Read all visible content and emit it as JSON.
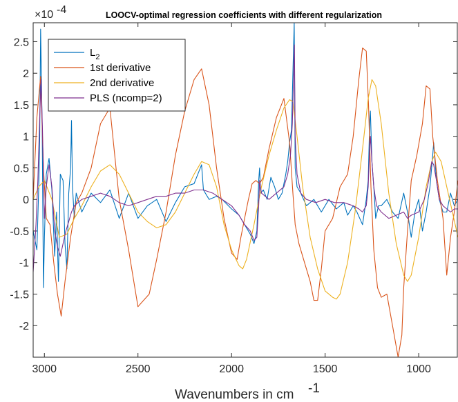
{
  "chart_data": {
    "type": "line",
    "title": "LOOCV-optimal regression coefficients with different regularization",
    "xlabel": "Wavenumbers in cm",
    "xlabel_superscript": "-1",
    "ylabel": "",
    "y_exponent_label": "×10",
    "y_exponent_power": "-4",
    "xlim": [
      3060,
      790
    ],
    "x_reversed": true,
    "ylim": [
      -2.5,
      2.8
    ],
    "x_ticks": [
      {
        "value": 3000,
        "label": "3000"
      },
      {
        "value": 2500,
        "label": "2500"
      },
      {
        "value": 2000,
        "label": "2000"
      },
      {
        "value": 1500,
        "label": "1500"
      },
      {
        "value": 1000,
        "label": "1000"
      }
    ],
    "y_ticks": [
      {
        "value": 2.5,
        "label": "2.5"
      },
      {
        "value": 2,
        "label": "2"
      },
      {
        "value": 1.5,
        "label": "1.5"
      },
      {
        "value": 1,
        "label": "1"
      },
      {
        "value": 0.5,
        "label": "0.5"
      },
      {
        "value": 0,
        "label": "0"
      },
      {
        "value": -0.5,
        "label": "-0.5"
      },
      {
        "value": -1,
        "label": "-1"
      },
      {
        "value": -1.5,
        "label": "-1.5"
      },
      {
        "value": -2,
        "label": "-2"
      }
    ],
    "grid": false,
    "legend_position": "top-left",
    "series": [
      {
        "name": "L",
        "name_subscript": "2",
        "color": "#0072BD",
        "x": [
          3060,
          3040,
          3030,
          3025,
          3020,
          3012,
          3005,
          3000,
          2990,
          2975,
          2960,
          2945,
          2935,
          2925,
          2915,
          2900,
          2890,
          2880,
          2870,
          2860,
          2855,
          2850,
          2840,
          2830,
          2800,
          2750,
          2700,
          2650,
          2600,
          2550,
          2500,
          2450,
          2400,
          2350,
          2300,
          2250,
          2200,
          2160,
          2150,
          2120,
          2080,
          2050,
          2000,
          1960,
          1930,
          1900,
          1880,
          1865,
          1855,
          1850,
          1845,
          1830,
          1810,
          1790,
          1770,
          1750,
          1730,
          1710,
          1700,
          1690,
          1680,
          1672,
          1665,
          1660,
          1650,
          1630,
          1600,
          1560,
          1520,
          1480,
          1440,
          1400,
          1380,
          1350,
          1330,
          1300,
          1280,
          1270,
          1262,
          1258,
          1250,
          1240,
          1230,
          1215,
          1200,
          1170,
          1140,
          1110,
          1080,
          1060,
          1040,
          1020,
          1000,
          980,
          960,
          940,
          925,
          920,
          905,
          890,
          870,
          850,
          830,
          810,
          790
        ],
        "y": [
          -0.5,
          -0.8,
          0.2,
          1.0,
          2.7,
          1.2,
          -1.4,
          -0.6,
          0.4,
          0.65,
          0.15,
          -0.9,
          -0.2,
          -1.3,
          0.4,
          0.3,
          -0.7,
          -1.1,
          0.1,
          0.5,
          1.25,
          0.2,
          -0.3,
          0.1,
          -0.2,
          0.1,
          -0.05,
          0.15,
          -0.3,
          0.1,
          -0.3,
          -0.1,
          0.0,
          -0.35,
          -0.05,
          0.2,
          0.25,
          0.55,
          0.15,
          0.0,
          0.05,
          0.0,
          -0.15,
          -0.25,
          -0.4,
          -0.55,
          -0.7,
          -0.5,
          0.3,
          0.5,
          0.1,
          0.15,
          0.0,
          0.35,
          0.2,
          0.0,
          0.1,
          0.4,
          0.6,
          0.9,
          1.1,
          2.0,
          2.8,
          0.5,
          0.2,
          0.1,
          -0.1,
          0.0,
          -0.2,
          0.0,
          -0.15,
          -0.05,
          -0.25,
          -0.1,
          -0.2,
          -0.4,
          0.0,
          0.3,
          1.2,
          1.4,
          0.6,
          0.2,
          -0.3,
          -0.1,
          -0.1,
          0.0,
          -0.2,
          -0.3,
          0.1,
          -0.2,
          -0.6,
          -0.2,
          0.0,
          -0.5,
          -0.2,
          0.2,
          0.7,
          0.9,
          0.3,
          0.0,
          -0.2,
          -0.2,
          0.1,
          -0.1,
          0.0
        ]
      },
      {
        "name": "1st derivative",
        "color": "#D95319",
        "x": [
          3060,
          3040,
          3020,
          3005,
          2990,
          2970,
          2950,
          2930,
          2910,
          2890,
          2860,
          2830,
          2800,
          2750,
          2700,
          2650,
          2600,
          2550,
          2500,
          2470,
          2440,
          2400,
          2350,
          2300,
          2250,
          2200,
          2160,
          2120,
          2080,
          2040,
          2000,
          1970,
          1950,
          1930,
          1910,
          1890,
          1870,
          1850,
          1830,
          1800,
          1760,
          1720,
          1690,
          1672,
          1660,
          1640,
          1610,
          1580,
          1560,
          1540,
          1520,
          1500,
          1460,
          1420,
          1380,
          1350,
          1320,
          1300,
          1280,
          1268,
          1255,
          1240,
          1220,
          1200,
          1170,
          1140,
          1110,
          1090,
          1080,
          1060,
          1040,
          1010,
          980,
          960,
          940,
          925,
          900,
          870,
          850,
          830,
          810,
          790
        ],
        "y": [
          0.0,
          1.3,
          1.95,
          0.5,
          -0.3,
          -0.4,
          -1.0,
          -1.5,
          -1.85,
          -1.3,
          -0.6,
          -0.05,
          0.1,
          0.5,
          1.2,
          1.45,
          0.0,
          -0.8,
          -1.7,
          -1.6,
          -1.5,
          -0.95,
          -0.2,
          0.7,
          1.4,
          1.9,
          2.07,
          1.5,
          0.5,
          -0.3,
          -0.85,
          -0.95,
          -0.6,
          -0.3,
          0.0,
          0.25,
          0.3,
          0.25,
          0.35,
          0.8,
          1.3,
          1.6,
          0.9,
          0.1,
          -0.4,
          -0.7,
          -1.0,
          -1.3,
          -1.6,
          -1.6,
          -1.1,
          -0.5,
          -0.3,
          0.2,
          0.4,
          1.0,
          1.9,
          2.4,
          2.35,
          1.5,
          0.2,
          -0.8,
          -1.4,
          -1.55,
          -1.5,
          -2.0,
          -2.5,
          -2.15,
          -1.4,
          -0.5,
          0.3,
          0.7,
          1.2,
          1.8,
          1.75,
          1.0,
          0.3,
          -0.3,
          -1.2,
          -0.6,
          -0.2,
          0.3
        ]
      },
      {
        "name": "2nd derivative",
        "color": "#EDB120",
        "x": [
          3060,
          3030,
          3000,
          2960,
          2920,
          2880,
          2840,
          2800,
          2750,
          2700,
          2650,
          2600,
          2550,
          2500,
          2450,
          2400,
          2350,
          2300,
          2250,
          2200,
          2160,
          2120,
          2080,
          2040,
          2000,
          1960,
          1940,
          1920,
          1880,
          1840,
          1800,
          1760,
          1720,
          1690,
          1672,
          1650,
          1620,
          1580,
          1540,
          1500,
          1460,
          1440,
          1420,
          1380,
          1340,
          1300,
          1270,
          1250,
          1230,
          1200,
          1160,
          1120,
          1080,
          1060,
          1040,
          1000,
          960,
          930,
          910,
          880,
          850,
          820,
          790
        ],
        "y": [
          0.0,
          0.2,
          0.3,
          0.0,
          -0.6,
          -0.55,
          -0.3,
          -0.1,
          0.2,
          0.45,
          0.55,
          0.4,
          0.1,
          -0.2,
          -0.35,
          -0.45,
          -0.4,
          -0.2,
          0.1,
          0.4,
          0.6,
          0.55,
          0.2,
          -0.4,
          -0.8,
          -1.05,
          -1.1,
          -0.95,
          -0.4,
          0.2,
          0.7,
          1.1,
          1.45,
          1.58,
          1.55,
          1.0,
          0.2,
          -0.6,
          -1.1,
          -1.45,
          -1.55,
          -1.58,
          -1.5,
          -1.0,
          -0.2,
          0.8,
          1.6,
          1.9,
          1.8,
          1.2,
          0.1,
          -0.7,
          -1.2,
          -1.3,
          -1.2,
          -0.6,
          0.2,
          0.6,
          0.75,
          0.6,
          0.2,
          -0.2,
          -0.6
        ]
      },
      {
        "name": "PLS (ncomp=2)",
        "color": "#7E2F8E",
        "x": [
          3060,
          3045,
          3035,
          3025,
          3018,
          3010,
          3000,
          2990,
          2975,
          2960,
          2945,
          2930,
          2915,
          2900,
          2885,
          2870,
          2855,
          2840,
          2800,
          2750,
          2700,
          2650,
          2600,
          2550,
          2500,
          2450,
          2400,
          2350,
          2300,
          2250,
          2200,
          2150,
          2100,
          2050,
          2000,
          1960,
          1930,
          1900,
          1880,
          1865,
          1855,
          1850,
          1840,
          1800,
          1760,
          1720,
          1700,
          1685,
          1675,
          1668,
          1664,
          1660,
          1650,
          1630,
          1600,
          1550,
          1500,
          1450,
          1400,
          1350,
          1320,
          1300,
          1280,
          1270,
          1262,
          1258,
          1250,
          1240,
          1225,
          1200,
          1160,
          1120,
          1080,
          1060,
          1040,
          1000,
          970,
          950,
          930,
          920,
          905,
          890,
          870,
          850,
          830,
          810,
          790
        ],
        "y": [
          -1.15,
          -0.4,
          0.3,
          1.3,
          1.9,
          1.1,
          -0.3,
          0.2,
          0.55,
          0.2,
          -0.5,
          -0.75,
          -0.9,
          -0.7,
          -0.5,
          -0.35,
          -0.2,
          -0.1,
          0.0,
          0.05,
          0.1,
          0.05,
          -0.05,
          -0.1,
          -0.05,
          0.0,
          0.05,
          0.05,
          0.1,
          0.1,
          0.15,
          0.15,
          0.1,
          0.0,
          -0.1,
          -0.25,
          -0.4,
          -0.5,
          -0.65,
          -0.6,
          -0.1,
          0.3,
          0.1,
          0.0,
          0.1,
          0.2,
          0.4,
          0.7,
          1.2,
          2.0,
          2.45,
          1.0,
          0.4,
          0.1,
          0.0,
          -0.05,
          0.0,
          -0.05,
          -0.05,
          -0.1,
          -0.15,
          -0.2,
          -0.1,
          0.2,
          0.8,
          1.0,
          0.6,
          0.2,
          -0.1,
          -0.2,
          -0.3,
          -0.25,
          -0.2,
          -0.3,
          -0.25,
          -0.2,
          0.0,
          0.25,
          0.6,
          0.55,
          0.3,
          0.0,
          -0.1,
          -0.15,
          -0.2,
          -0.15,
          -0.15
        ]
      }
    ]
  }
}
